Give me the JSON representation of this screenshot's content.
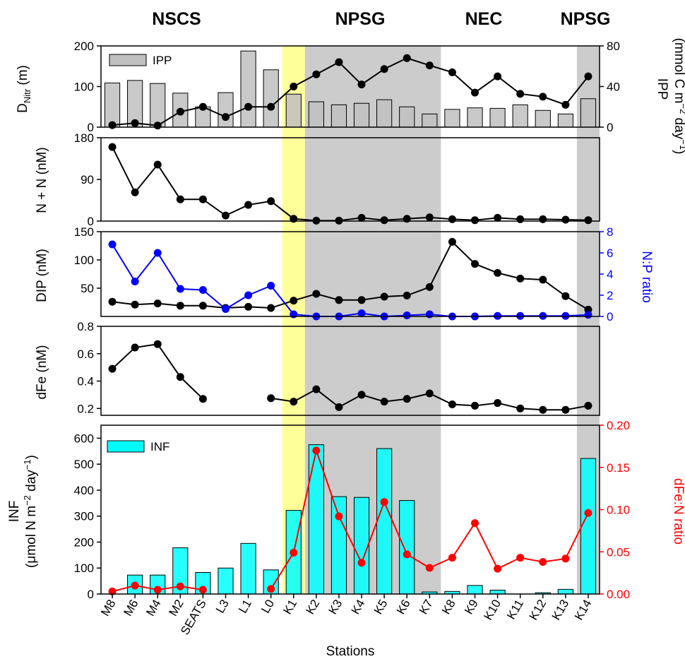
{
  "regions": [
    "NSCS",
    "NPSG",
    "NEC",
    "NPSG"
  ],
  "x_axis_label": "Stations",
  "stations": [
    "M8",
    "M6",
    "M4",
    "M2",
    "SEATS",
    "L3",
    "L1",
    "L0",
    "K1",
    "K2",
    "K3",
    "K4",
    "K5",
    "K6",
    "K7",
    "K8",
    "K9",
    "K10",
    "K11",
    "K12",
    "K13",
    "K14"
  ],
  "colors": {
    "bar_gray": "#c0c0c0",
    "bar_cyan": "#00ffff",
    "line_black": "#000000",
    "line_blue": "#0000ff",
    "line_red": "#ff0000",
    "shade_yellow": "#ffff99",
    "shade_gray": "#cccccc"
  },
  "axis_titles": {
    "p1_left_main": "D",
    "p1_left_sub": "Nitr",
    "p1_left_unit": " (m)",
    "p1_right_1": "IPP",
    "p1_right_2": "(mmol C m",
    "p1_right_2_sup": "−2",
    "p1_right_2_mid": " day",
    "p1_right_2_sup2": "−1",
    "p1_right_2_end": ")",
    "p2_left": "N + N (nM)",
    "p3_left": "DIP (nM)",
    "p3_right": "N:P ratio",
    "p4_left": "dFe (nM)",
    "p5_left_1": "INF",
    "p5_left_2": "(μmol N m",
    "p5_left_2_sup": "−2",
    "p5_left_2_mid": " day",
    "p5_left_2_sup2": "−1",
    "p5_left_2_end": ")",
    "p5_right": "dFe:N ratio"
  },
  "legends": {
    "ipp": "IPP",
    "inf": "INF"
  },
  "chart_data": [
    {
      "type": "bar+line",
      "panel": "DNitr / IPP",
      "left_ylabel": "DNitr (m)",
      "right_ylabel": "IPP (mmol C m−2 day−1)",
      "left_ylim": [
        0,
        200
      ],
      "left_ticks": [
        "0",
        "100",
        "200"
      ],
      "right_ylim": [
        0,
        80
      ],
      "right_ticks": [
        "0",
        "40",
        "80"
      ],
      "categories": [
        "M8",
        "M6",
        "M4",
        "M2",
        "SEATS",
        "L3",
        "L1",
        "L0",
        "K1",
        "K2",
        "K3",
        "K4",
        "K5",
        "K6",
        "K7",
        "K8",
        "K9",
        "K10",
        "K11",
        "K12",
        "K13",
        "K14"
      ],
      "series": [
        {
          "name": "IPP",
          "kind": "bar",
          "axis": "right",
          "values": [
            43.5,
            46,
            43,
            33.5,
            20,
            34,
            75,
            56.5,
            32.5,
            25,
            22,
            23.5,
            27,
            20,
            13,
            17.5,
            19,
            18.5,
            22,
            16.5,
            13,
            28
          ]
        },
        {
          "kind": "line",
          "axis": "left",
          "values": [
            5,
            10,
            4,
            38,
            50,
            25,
            50,
            50,
            100,
            130,
            160,
            105,
            143,
            170,
            152,
            135,
            85,
            125,
            82,
            75,
            55,
            125
          ]
        }
      ]
    },
    {
      "type": "line",
      "panel": "N + N",
      "ylabel": "N + N (nM)",
      "ylim": [
        0,
        180
      ],
      "ticks": [
        "0",
        "90",
        "180"
      ],
      "categories": [
        "M8",
        "M6",
        "M4",
        "M2",
        "SEATS",
        "L3",
        "L1",
        "L0",
        "K1",
        "K2",
        "K3",
        "K4",
        "K5",
        "K6",
        "K7",
        "K8",
        "K9",
        "K10",
        "K11",
        "K12",
        "K13",
        "K14"
      ],
      "values": [
        160,
        62,
        122,
        47,
        47,
        12,
        35,
        43,
        5,
        1,
        1,
        7,
        2,
        5,
        8,
        4,
        2,
        7,
        4,
        4,
        3,
        2
      ]
    },
    {
      "type": "line",
      "panel": "DIP / N:P",
      "left_ylabel": "DIP (nM)",
      "right_ylabel": "N:P ratio",
      "left_ylim": [
        0,
        150
      ],
      "left_ticks": [
        "50",
        "100",
        "150"
      ],
      "right_ylim": [
        0,
        8
      ],
      "right_ticks": [
        "0",
        "2",
        "4",
        "6",
        "8"
      ],
      "categories": [
        "M8",
        "M6",
        "M4",
        "M2",
        "SEATS",
        "L3",
        "L1",
        "L0",
        "K1",
        "K2",
        "K3",
        "K4",
        "K5",
        "K6",
        "K7",
        "K8",
        "K9",
        "K10",
        "K11",
        "K12",
        "K13",
        "K14"
      ],
      "series": [
        {
          "axis": "left",
          "color": "black",
          "values": [
            26,
            21,
            23,
            19,
            19,
            15,
            17,
            15,
            28,
            40,
            29,
            29,
            35,
            37,
            52,
            132,
            93,
            77,
            67,
            65,
            36,
            12
          ]
        },
        {
          "axis": "right",
          "color": "blue",
          "values": [
            6.8,
            3.3,
            6,
            2.6,
            2.5,
            0.7,
            2,
            2.9,
            0.2,
            0,
            0,
            0.3,
            0,
            0.1,
            0.2,
            0,
            0,
            0.05,
            0.05,
            0.05,
            0.05,
            0.15
          ]
        }
      ]
    },
    {
      "type": "line",
      "panel": "dFe",
      "ylabel": "dFe (nM)",
      "ylim": [
        0.15,
        0.8
      ],
      "ticks": [
        "0.2",
        "0.4",
        "0.6",
        "0.8"
      ],
      "categories": [
        "M8",
        "M6",
        "M4",
        "M2",
        "SEATS",
        "L3",
        "L1",
        "L0",
        "K1",
        "K2",
        "K3",
        "K4",
        "K5",
        "K6",
        "K7",
        "K8",
        "K9",
        "K10",
        "K11",
        "K12",
        "K13",
        "K14"
      ],
      "values": [
        0.49,
        0.645,
        0.67,
        0.43,
        0.27,
        null,
        null,
        0.275,
        0.25,
        0.34,
        0.21,
        0.3,
        0.25,
        0.27,
        0.31,
        0.23,
        0.22,
        0.24,
        0.2,
        0.19,
        0.19,
        0.22
      ]
    },
    {
      "type": "bar+line",
      "panel": "INF / dFe:N",
      "left_ylabel": "INF (μmol N m−2 day−1)",
      "right_ylabel": "dFe:N ratio",
      "left_ylim": [
        0,
        650
      ],
      "left_ticks": [
        "0",
        "100",
        "200",
        "300",
        "400",
        "500",
        "600"
      ],
      "right_ylim": [
        0,
        0.2
      ],
      "right_ticks": [
        "0.00",
        "0.05",
        "0.10",
        "0.15",
        "0.20"
      ],
      "categories": [
        "M8",
        "M6",
        "M4",
        "M2",
        "SEATS",
        "L3",
        "L1",
        "L0",
        "K1",
        "K2",
        "K3",
        "K4",
        "K5",
        "K6",
        "K7",
        "K8",
        "K9",
        "K10",
        "K11",
        "K12",
        "K13",
        "K14"
      ],
      "series": [
        {
          "name": "INF",
          "kind": "bar",
          "axis": "left",
          "values": [
            0,
            73,
            73,
            178,
            83,
            100,
            195,
            93,
            322,
            575,
            375,
            372,
            560,
            360,
            8,
            10,
            33,
            15,
            0,
            5,
            18,
            522
          ]
        },
        {
          "kind": "line",
          "axis": "right",
          "color": "red",
          "values": [
            0.003,
            0.01,
            0.005,
            0.009,
            0.005,
            null,
            null,
            0.006,
            0.049,
            0.17,
            0.092,
            0.037,
            0.109,
            0.047,
            0.031,
            0.043,
            0.084,
            0.03,
            0.043,
            0.038,
            0.042,
            0.096
          ]
        }
      ]
    }
  ]
}
